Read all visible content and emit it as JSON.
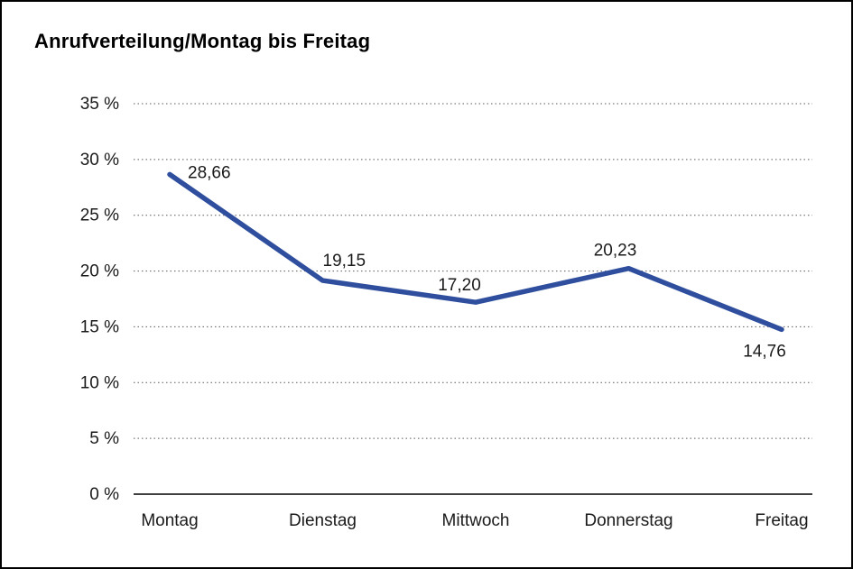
{
  "chart_data": {
    "type": "line",
    "title": "Anrufverteilung/Montag bis Freitag",
    "categories": [
      "Montag",
      "Dienstag",
      "Mittwoch",
      "Donnerstag",
      "Freitag"
    ],
    "values": [
      28.66,
      19.15,
      17.2,
      20.23,
      14.76
    ],
    "value_labels": [
      "28,66",
      "19,15",
      "17,20",
      "20,23",
      "14,76"
    ],
    "series_name": "Anrufverteilung",
    "xlabel": "",
    "ylabel": "",
    "ylim": [
      0,
      35
    ],
    "y_tick_values": [
      35,
      30,
      25,
      20,
      15,
      10,
      5,
      0
    ],
    "y_ticks": [
      "35 %",
      "30 %",
      "25 %",
      "20 %",
      "15 %",
      "10 %",
      "5 %",
      "0 %"
    ],
    "grid": "dotted-horizontal",
    "legend": "none",
    "line_color": "#2f4f9e",
    "axis_color": "#000000",
    "gridline_color": "#595959",
    "label_color": "#1a1a1a"
  }
}
